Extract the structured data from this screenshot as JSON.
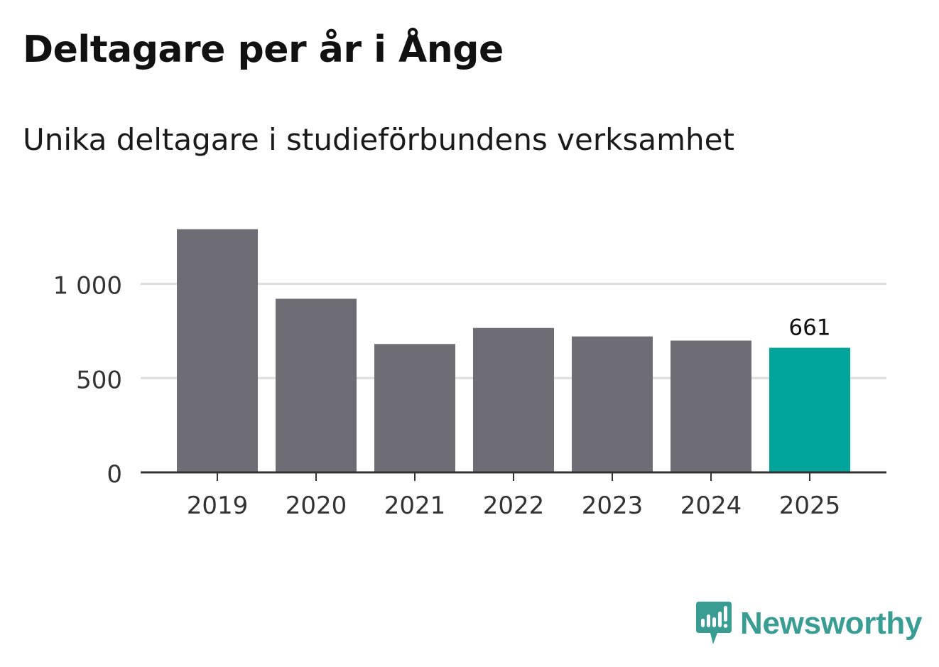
{
  "title": "Deltagare per år i Ånge",
  "subtitle": "Unika deltagare i studieförbundens verksamhet",
  "brand": {
    "name": "Newsworthy",
    "icon": "newsworthy-logo-icon",
    "color": "#3a9d94"
  },
  "chart_data": {
    "type": "bar",
    "title": "Deltagare per år i Ånge",
    "subtitle": "Unika deltagare i studieförbundens verksamhet",
    "xlabel": "",
    "ylabel": "",
    "categories": [
      "2019",
      "2020",
      "2021",
      "2022",
      "2023",
      "2024",
      "2025"
    ],
    "values": [
      1290,
      921,
      681,
      766,
      721,
      699,
      661
    ],
    "ylim": [
      0,
      1300
    ],
    "yticks": [
      0,
      500,
      1000
    ],
    "ytick_labels": [
      "0",
      "500",
      "1 000"
    ],
    "grid": true,
    "highlight_index": 6,
    "data_labels": [
      {
        "index": 6,
        "text": "661"
      }
    ],
    "colors": {
      "default_bar": "#6e6d75",
      "highlight_bar": "#00a49a",
      "grid": "#dddddd",
      "axis": "#333333"
    }
  }
}
